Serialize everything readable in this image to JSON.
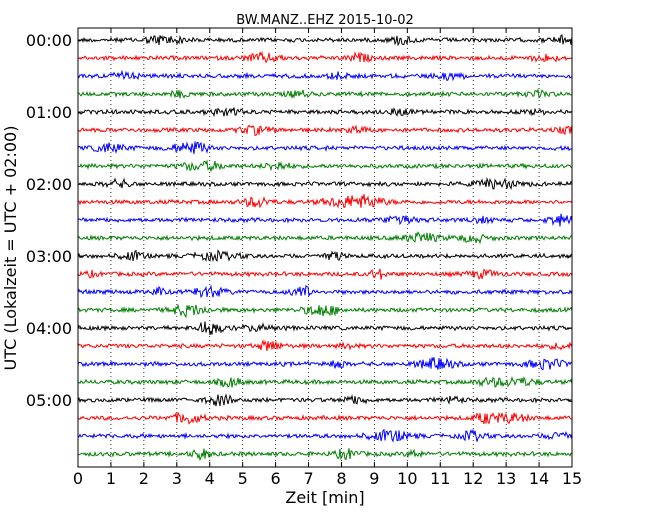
{
  "chart_data": {
    "type": "line",
    "title": "BW.MANZ..EHZ 2015-10-02",
    "xlabel": "Zeit  [min]",
    "ylabel": "UTC (Lokalzeit = UTC + 02:00)",
    "xlim": [
      0,
      15
    ],
    "x_ticks": [
      "0",
      "1",
      "2",
      "3",
      "4",
      "5",
      "6",
      "7",
      "8",
      "9",
      "10",
      "11",
      "12",
      "13",
      "14",
      "15"
    ],
    "y_ticks": [
      "00:00",
      "01:00",
      "02:00",
      "03:00",
      "04:00",
      "05:00"
    ],
    "vertical_grid": "dotted",
    "trace_colors": [
      "#000000",
      "#ff0000",
      "#0000ff",
      "#007f00"
    ],
    "traces_per_hour": 4,
    "minutes_per_trace": 15,
    "trace_start_times": [
      "00:00",
      "00:15",
      "00:30",
      "00:45",
      "01:00",
      "01:15",
      "01:30",
      "01:45",
      "02:00",
      "02:15",
      "02:30",
      "02:45",
      "03:00",
      "03:15",
      "03:30",
      "03:45",
      "04:00",
      "04:15",
      "04:30",
      "04:45",
      "05:00",
      "05:15",
      "05:30",
      "05:45"
    ]
  }
}
